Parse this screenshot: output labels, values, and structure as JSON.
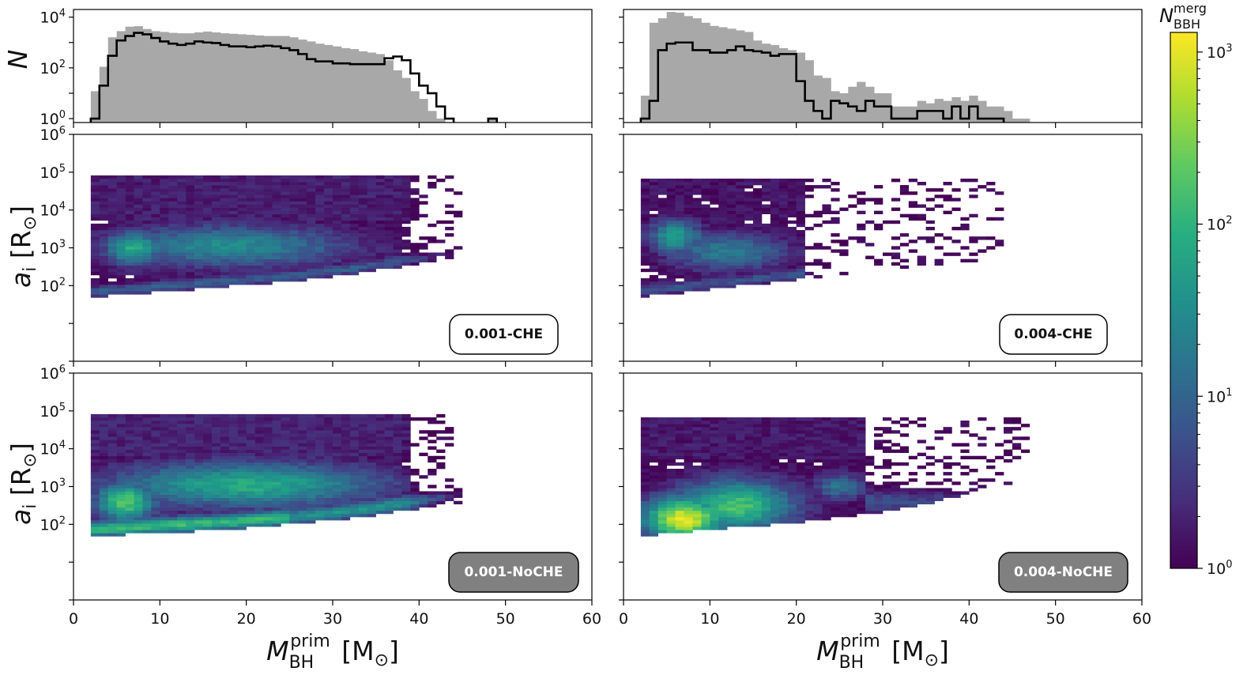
{
  "figure": {
    "x_axis_label": "M_BH^prim [M_⊙]",
    "colorbar": {
      "label": "N_BBH^merg",
      "scale": "log",
      "range": [
        1,
        1300
      ],
      "colormap": "viridis",
      "ticks": [
        "10^0",
        "10^1",
        "10^2",
        "10^3"
      ]
    },
    "colors": {
      "total_hist_fill": "#a8a8a8",
      "step_line": "#000000",
      "che_badge_bg": "#ffffff",
      "noche_badge_bg": "#808080"
    }
  },
  "chart_data": [
    {
      "id": "hist-0.001",
      "type": "bar",
      "ylabel": "N",
      "yscale": "log",
      "xlim": [
        0,
        60
      ],
      "ylim": [
        0.7,
        20000
      ],
      "x_ticks": [
        0,
        10,
        20,
        30,
        40,
        50,
        60
      ],
      "y_ticks": [
        "10^0",
        "10^2",
        "10^4"
      ],
      "bin_width": 1,
      "bin_start": 2,
      "series": [
        {
          "values": [
            12,
            110,
            1600,
            2800,
            4200,
            4400,
            3400,
            2800,
            2600,
            2400,
            2300,
            2300,
            2500,
            2700,
            2500,
            2300,
            2200,
            2100,
            2000,
            1900,
            1800,
            1800,
            1800,
            1600,
            1300,
            1100,
            900,
            800,
            700,
            600,
            550,
            450,
            400,
            350,
            200,
            80,
            40,
            12,
            6,
            2,
            1
          ]
        },
        {
          "values": [
            1,
            20,
            300,
            1200,
            1800,
            2400,
            2100,
            1500,
            1100,
            900,
            800,
            900,
            1100,
            1000,
            950,
            800,
            700,
            700,
            650,
            700,
            750,
            700,
            600,
            500,
            350,
            220,
            180,
            180,
            150,
            150,
            140,
            140,
            140,
            140,
            240,
            280,
            200,
            60,
            20,
            10,
            3,
            1
          ]
        }
      ],
      "extra_bins": [
        {
          "x": 48,
          "w": 1,
          "value": 1
        }
      ]
    },
    {
      "id": "hist-0.004",
      "type": "bar",
      "ylabel": "",
      "yscale": "log",
      "xlim": [
        0,
        60
      ],
      "ylim": [
        0.7,
        20000
      ],
      "x_ticks": [
        0,
        10,
        20,
        30,
        40,
        50,
        60
      ],
      "y_ticks": [],
      "bin_width": 1,
      "bin_start": 2,
      "series": [
        {
          "values": [
            8,
            6000,
            9000,
            16000,
            15000,
            11000,
            9000,
            6000,
            4500,
            4000,
            3500,
            3000,
            2600,
            1200,
            900,
            800,
            600,
            500,
            400,
            200,
            50,
            40,
            12,
            10,
            18,
            28,
            18,
            10,
            10,
            3,
            3,
            3,
            5,
            4,
            6,
            5,
            7,
            5,
            8,
            5,
            3,
            3,
            2,
            1,
            1
          ]
        },
        {
          "values": [
            1,
            5,
            500,
            900,
            1000,
            1000,
            500,
            500,
            400,
            400,
            500,
            700,
            500,
            450,
            400,
            300,
            350,
            350,
            30,
            5,
            2,
            1,
            5,
            4,
            3,
            2,
            5,
            3,
            3,
            1,
            1,
            1,
            2,
            2,
            2,
            1,
            3,
            1,
            3,
            1,
            1,
            1
          ]
        }
      ]
    },
    {
      "id": "heat-0.001-CHE",
      "type": "heatmap",
      "ylabel": "a_i [R_⊙]",
      "yscale": "log",
      "xlim": [
        0,
        60
      ],
      "ylim": [
        1,
        1000000
      ],
      "x_ticks": [
        0,
        10,
        20,
        30,
        40,
        50,
        60
      ],
      "y_ticks": [
        "10^2",
        "10^3",
        "10^4",
        "10^5",
        "10^6"
      ],
      "badge": "0.001-CHE",
      "count_peak": 250
    },
    {
      "id": "heat-0.004-CHE",
      "type": "heatmap",
      "ylabel": "",
      "yscale": "log",
      "xlim": [
        0,
        60
      ],
      "ylim": [
        1,
        1000000
      ],
      "x_ticks": [
        0,
        10,
        20,
        30,
        40,
        50,
        60
      ],
      "badge": "0.004-CHE",
      "count_peak": 200
    },
    {
      "id": "heat-0.001-NoCHE",
      "type": "heatmap",
      "ylabel": "a_i [R_⊙]",
      "yscale": "log",
      "xlim": [
        0,
        60
      ],
      "ylim": [
        1,
        1000000
      ],
      "x_ticks": [
        0,
        10,
        20,
        30,
        40,
        50,
        60
      ],
      "y_ticks": [
        "10^2",
        "10^3",
        "10^4",
        "10^5",
        "10^6"
      ],
      "badge": "0.001-NoCHE",
      "count_peak": 600
    },
    {
      "id": "heat-0.004-NoCHE",
      "type": "heatmap",
      "ylabel": "",
      "yscale": "log",
      "xlim": [
        0,
        60
      ],
      "ylim": [
        1,
        1000000
      ],
      "x_ticks": [
        0,
        10,
        20,
        30,
        40,
        50,
        60
      ],
      "badge": "0.004-NoCHE",
      "count_peak": 1300
    }
  ]
}
